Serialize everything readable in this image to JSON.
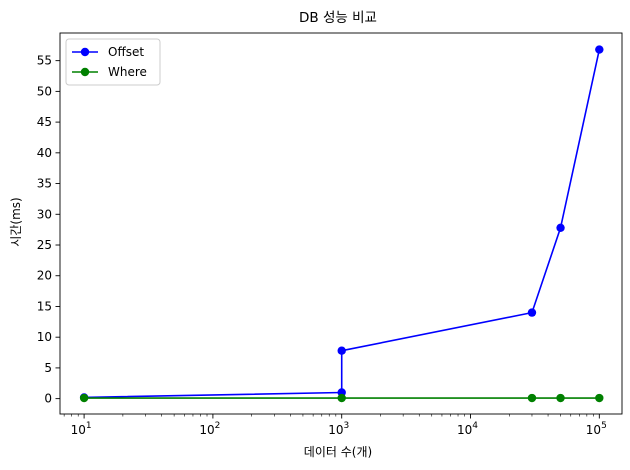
{
  "chart_data": {
    "type": "line",
    "title": "DB 성능 비교",
    "xlabel": "데이터 수(개)",
    "ylabel": "시간(ms)",
    "xscale": "log",
    "xlim": [
      6.5,
      150000
    ],
    "ylim": [
      -2.5,
      59.5
    ],
    "xticks": [
      10,
      100,
      1000,
      10000,
      100000
    ],
    "xtick_labels": [
      {
        "base": "10",
        "exp": "1"
      },
      {
        "base": "10",
        "exp": "2"
      },
      {
        "base": "10",
        "exp": "3"
      },
      {
        "base": "10",
        "exp": "4"
      },
      {
        "base": "10",
        "exp": "5"
      }
    ],
    "yticks": [
      0,
      5,
      10,
      15,
      20,
      25,
      30,
      35,
      40,
      45,
      50,
      55
    ],
    "grid": false,
    "legend_position": "top-left",
    "series": [
      {
        "name": "Offset",
        "color": "#0000ff",
        "marker": "circle",
        "points": [
          {
            "x": 10,
            "y": 0.2
          },
          {
            "x": 1000,
            "y": 1.0
          },
          {
            "x": 1000,
            "y": 7.8
          },
          {
            "x": 30000,
            "y": 14.0
          },
          {
            "x": 50000,
            "y": 27.8
          },
          {
            "x": 100000,
            "y": 56.8
          }
        ]
      },
      {
        "name": "Where",
        "color": "#008000",
        "marker": "circle",
        "points": [
          {
            "x": 10,
            "y": 0.1
          },
          {
            "x": 1000,
            "y": 0.1
          },
          {
            "x": 30000,
            "y": 0.1
          },
          {
            "x": 50000,
            "y": 0.1
          },
          {
            "x": 100000,
            "y": 0.1
          }
        ]
      }
    ]
  }
}
